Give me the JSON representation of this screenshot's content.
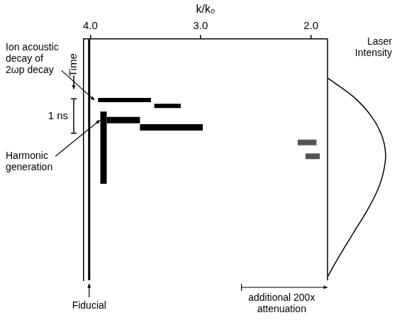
{
  "chart_data": [
    {
      "type": "scatter",
      "x_label": "k/k₀",
      "y_label": "Time",
      "xlim": [
        4.06,
        1.85
      ],
      "xticks": [
        {
          "value": 4,
          "label": "4.0"
        },
        {
          "value": 3,
          "label": "3.0"
        },
        {
          "value": 2,
          "label": "2.0"
        }
      ],
      "ylim": [
        7.0,
        0
      ],
      "tick_labels": "x",
      "grid": false,
      "marker": "none",
      "series": [
        {
          "name": "Fiducial",
          "color": "#000000",
          "x": [
            4.01,
            4.01
          ],
          "values": [
            0,
            7.0
          ]
        },
        {
          "name": "Ion acoustic decay of 2ωp decay",
          "color": "#000000",
          "x": [
            3.93,
            3.45,
            null,
            3.42,
            3.18
          ],
          "values": [
            1.77,
            1.77,
            null,
            1.94,
            1.94
          ]
        },
        {
          "name": "Harmonic generation",
          "color": "#000000",
          "x": [
            3.88,
            3.88,
            null,
            3.85,
            3.55,
            null,
            3.55,
            2.98
          ],
          "values": [
            2.1,
            4.2,
            null,
            2.35,
            2.35,
            null,
            2.56,
            2.56
          ]
        },
        {
          "color": "#555555",
          "x": [
            2.12,
            1.95,
            null,
            2.05,
            1.92
          ],
          "values": [
            3.0,
            3.0,
            null,
            3.4,
            3.4
          ]
        }
      ],
      "scale_bar": {
        "value": 1,
        "label": "1 ns",
        "y": 1.73
      },
      "annotations": [
        {
          "text": "additional 200x attenuation",
          "x": [
            2.63,
            1.85
          ]
        }
      ]
    },
    {
      "type": "line",
      "title": "Laser Intensity",
      "y": [
        0.6,
        1.2,
        1.8,
        2.4,
        3.0,
        3.6,
        4.2,
        4.8,
        5.4,
        6.0,
        6.5,
        6.9
      ],
      "values": [
        0,
        0.45,
        0.75,
        0.93,
        1.0,
        0.96,
        0.85,
        0.68,
        0.48,
        0.28,
        0.12,
        0
      ],
      "xlim": [
        0,
        1.05
      ],
      "ylim": [
        7.0,
        0
      ],
      "tick_labels": false,
      "color": "#000000"
    }
  ]
}
